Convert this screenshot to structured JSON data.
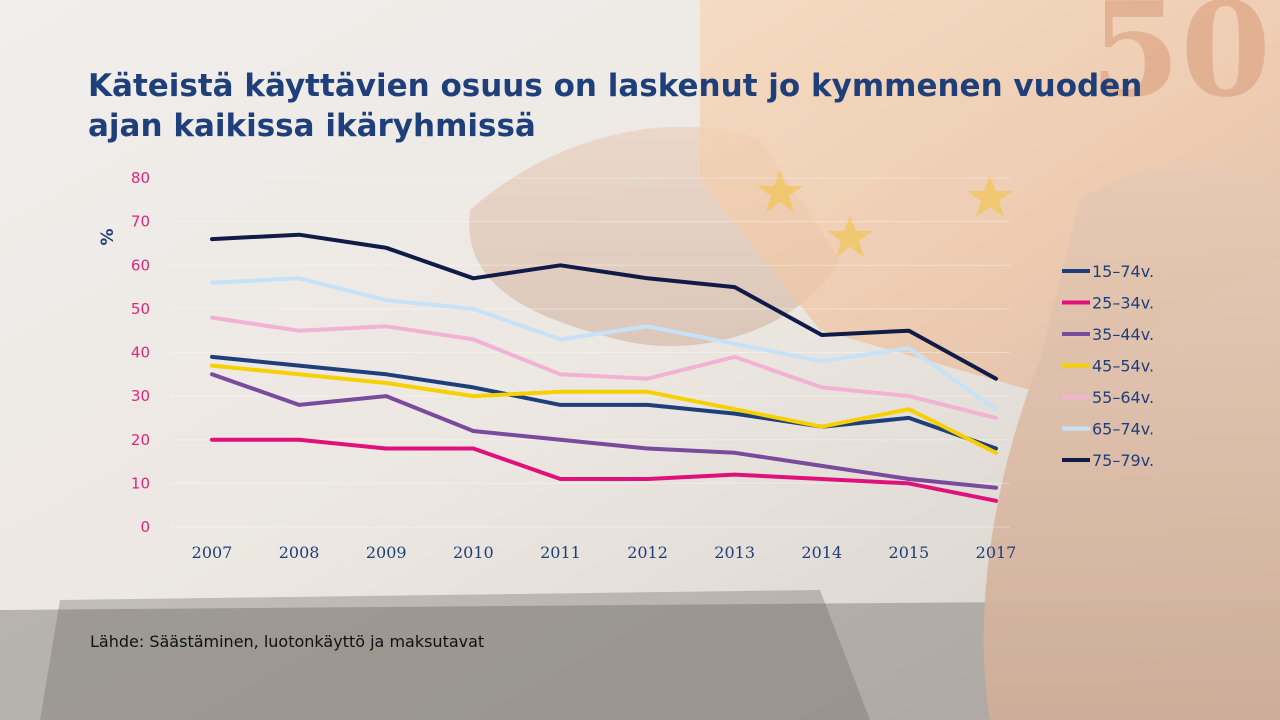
{
  "title": "Käteistä käyttävien osuus on laskenut jo kymmenen vuoden ajan kaikissa ikäryhmissä",
  "source": "Lähde: Säästäminen, luotonkäyttö ja maksutavat",
  "colors": {
    "title": "#1f3f7a",
    "y_ticks": "#e0257a",
    "x_ticks": "#1f3f7a"
  },
  "chart_data": {
    "type": "line",
    "title": "Käteistä käyttävien osuus on laskenut jo kymmenen vuoden ajan kaikissa ikäryhmissä",
    "xlabel": "",
    "ylabel": "%",
    "ylim": [
      0,
      80
    ],
    "y_ticks": [
      "0",
      "10",
      "20",
      "30",
      "40",
      "50",
      "60",
      "70",
      "80"
    ],
    "categories": [
      "2007",
      "2008",
      "2009",
      "2010",
      "2011",
      "2012",
      "2013",
      "2014",
      "2015",
      "2017"
    ],
    "grid": true,
    "legend_position": "right",
    "series": [
      {
        "name": "15–74v.",
        "color": "#1f3f7a",
        "values": [
          39,
          37,
          35,
          32,
          28,
          28,
          26,
          23,
          25,
          18
        ]
      },
      {
        "name": "25–34v.",
        "color": "#e0117a",
        "values": [
          20,
          20,
          18,
          18,
          11,
          11,
          12,
          11,
          10,
          6
        ]
      },
      {
        "name": "35–44v.",
        "color": "#7a4a9c",
        "values": [
          35,
          28,
          30,
          22,
          20,
          18,
          17,
          14,
          11,
          9
        ]
      },
      {
        "name": "45–54v.",
        "color": "#f7d000",
        "values": [
          37,
          35,
          33,
          30,
          31,
          31,
          27,
          23,
          27,
          17
        ]
      },
      {
        "name": "55–64v.",
        "color": "#f2b2d4",
        "values": [
          48,
          45,
          46,
          43,
          35,
          34,
          39,
          32,
          30,
          25
        ]
      },
      {
        "name": "65–74v.",
        "color": "#c5e2f8",
        "values": [
          56,
          57,
          52,
          50,
          43,
          46,
          42,
          38,
          41,
          27
        ]
      },
      {
        "name": "75–79v.",
        "color": "#111b48",
        "values": [
          66,
          67,
          64,
          57,
          60,
          57,
          55,
          44,
          45,
          34
        ]
      }
    ]
  }
}
